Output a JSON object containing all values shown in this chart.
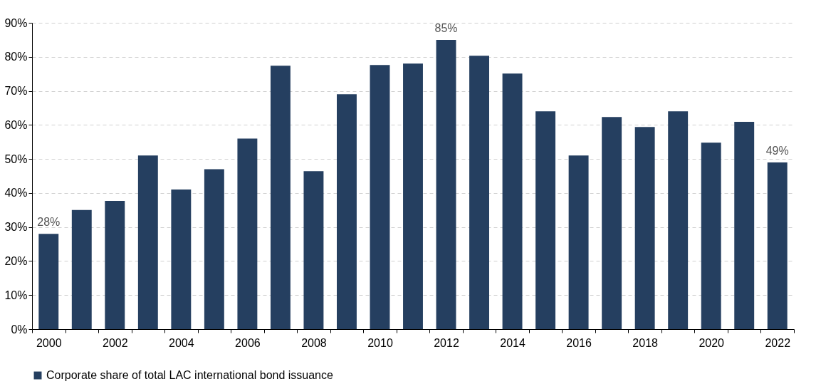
{
  "chart_data": {
    "type": "bar",
    "categories": [
      "2000",
      null,
      "2002",
      null,
      "2004",
      null,
      "2006",
      null,
      "2008",
      null,
      "2010",
      null,
      "2012",
      null,
      "2014",
      null,
      "2016",
      null,
      "2018",
      null,
      "2020",
      null,
      "2022"
    ],
    "series": [
      {
        "name": "Corporate share of total LAC international bond issuance",
        "color": "#253f60",
        "values": [
          28,
          35,
          37.7,
          51,
          41,
          47,
          56,
          77.4,
          46.4,
          69,
          77.6,
          78,
          85,
          80.3,
          75.1,
          64,
          51,
          62.3,
          59.4,
          64,
          54.8,
          60.9,
          49
        ],
        "value_labels": [
          "28%",
          null,
          null,
          null,
          null,
          null,
          null,
          null,
          null,
          null,
          null,
          null,
          "85%",
          null,
          null,
          null,
          null,
          null,
          null,
          null,
          null,
          null,
          "49%"
        ]
      }
    ],
    "ylim": [
      0,
      90
    ],
    "yticks": [
      {
        "value": 0,
        "label": "0%"
      },
      {
        "value": 10,
        "label": "10%"
      },
      {
        "value": 20,
        "label": "20%"
      },
      {
        "value": 30,
        "label": "30%"
      },
      {
        "value": 40,
        "label": "40%"
      },
      {
        "value": 50,
        "label": "50%"
      },
      {
        "value": 60,
        "label": "60%"
      },
      {
        "value": 70,
        "label": "70%"
      },
      {
        "value": 80,
        "label": "80%"
      },
      {
        "value": 90,
        "label": "90%"
      }
    ],
    "grid": "y",
    "legend": "bottom"
  }
}
